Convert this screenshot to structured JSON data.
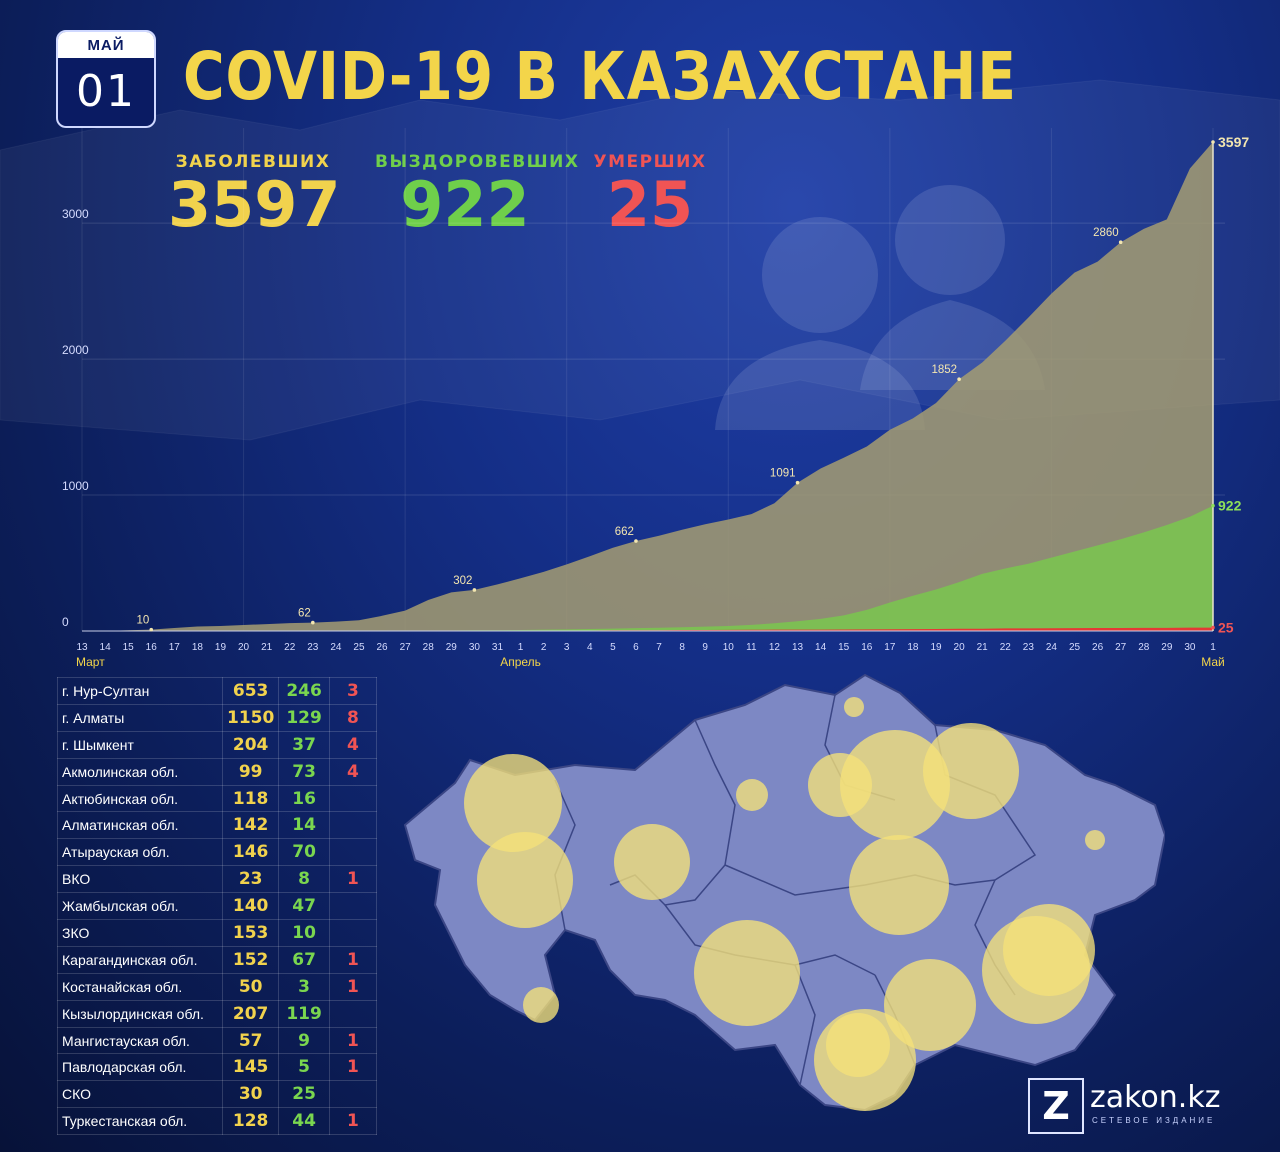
{
  "date_badge": {
    "month": "МАЙ",
    "day": "01"
  },
  "title": "COVID-19 В КАЗАХСТАНЕ",
  "stats": {
    "cases": {
      "label": "ЗАБОЛЕВШИХ",
      "value": "3597"
    },
    "recovered": {
      "label": "ВЫЗДОРОВЕВШИХ",
      "value": "922"
    },
    "deaths": {
      "label": "УМЕРШИХ",
      "value": "25"
    }
  },
  "colors": {
    "cases": "#a49c72",
    "recovered": "#7cc152",
    "deaths": "#e53935",
    "accent_yellow": "#f3d54a"
  },
  "chart_data": {
    "type": "area",
    "x": [
      "13",
      "14",
      "15",
      "16",
      "17",
      "18",
      "19",
      "20",
      "21",
      "22",
      "23",
      "24",
      "25",
      "26",
      "27",
      "28",
      "29",
      "30",
      "31",
      "1",
      "2",
      "3",
      "4",
      "5",
      "6",
      "7",
      "8",
      "9",
      "10",
      "11",
      "12",
      "13",
      "14",
      "15",
      "16",
      "17",
      "18",
      "19",
      "20",
      "21",
      "22",
      "23",
      "24",
      "25",
      "26",
      "27",
      "28",
      "29",
      "30",
      "1"
    ],
    "month_labels": [
      {
        "text": "Март",
        "index": 0
      },
      {
        "text": "Апрель",
        "index": 19
      },
      {
        "text": "Май",
        "index": 49
      }
    ],
    "ylim": [
      0,
      3700
    ],
    "y_ticks": [
      0,
      1000,
      2000,
      3000
    ],
    "grid": true,
    "series": [
      {
        "values": [
          0,
          0,
          5,
          10,
          22,
          33,
          37,
          44,
          51,
          58,
          62,
          69,
          79,
          112,
          150,
          228,
          284,
          302,
          343,
          388,
          435,
          490,
          550,
          612,
          662,
          700,
          745,
          785,
          820,
          860,
          940,
          1091,
          1195,
          1275,
          1357,
          1480,
          1564,
          1677,
          1852,
          1975,
          2135,
          2305,
          2482,
          2636,
          2717,
          2860,
          2958,
          3028,
          3402,
          3597
        ],
        "annotations": [
          {
            "index": 3,
            "text": "10"
          },
          {
            "index": 10,
            "text": "62"
          },
          {
            "index": 17,
            "text": "302"
          },
          {
            "index": 24,
            "text": "662"
          },
          {
            "index": 31,
            "text": "1091"
          },
          {
            "index": 38,
            "text": "1852"
          },
          {
            "index": 45,
            "text": "2860"
          },
          {
            "index": 49,
            "text": "3597"
          }
        ]
      },
      {
        "values": [
          0,
          0,
          0,
          0,
          0,
          0,
          0,
          0,
          0,
          0,
          0,
          1,
          1,
          1,
          2,
          3,
          4,
          5,
          6,
          7,
          10,
          12,
          15,
          18,
          21,
          24,
          27,
          32,
          37,
          45,
          57,
          72,
          89,
          115,
          155,
          210,
          260,
          305,
          360,
          420,
          460,
          495,
          540,
          585,
          630,
          675,
          725,
          780,
          840,
          922
        ],
        "annotations": [
          {
            "index": 49,
            "text": "922"
          }
        ]
      },
      {
        "values": [
          0,
          0,
          0,
          0,
          0,
          0,
          0,
          0,
          0,
          0,
          0,
          0,
          0,
          0,
          1,
          1,
          1,
          1,
          1,
          2,
          3,
          3,
          4,
          5,
          6,
          6,
          7,
          7,
          8,
          9,
          10,
          10,
          10,
          11,
          12,
          13,
          14,
          15,
          17,
          17,
          19,
          19,
          20,
          21,
          22,
          22,
          23,
          23,
          25,
          25
        ],
        "annotations": [
          {
            "index": 49,
            "text": "25"
          }
        ]
      }
    ]
  },
  "regions": [
    {
      "name": "г. Нур-Султан",
      "cases": "653",
      "recovered": "246",
      "deaths": "3"
    },
    {
      "name": "г. Алматы",
      "cases": "1150",
      "recovered": "129",
      "deaths": "8"
    },
    {
      "name": "г. Шымкент",
      "cases": "204",
      "recovered": "37",
      "deaths": "4"
    },
    {
      "name": "Акмолинская обл.",
      "cases": "99",
      "recovered": "73",
      "deaths": "4"
    },
    {
      "name": "Актюбинская обл.",
      "cases": "118",
      "recovered": "16",
      "deaths": ""
    },
    {
      "name": "Алматинская обл.",
      "cases": "142",
      "recovered": "14",
      "deaths": ""
    },
    {
      "name": "Атырауская обл.",
      "cases": "146",
      "recovered": "70",
      "deaths": ""
    },
    {
      "name": "ВКО",
      "cases": "23",
      "recovered": "8",
      "deaths": "1"
    },
    {
      "name": "Жамбылская обл.",
      "cases": "140",
      "recovered": "47",
      "deaths": ""
    },
    {
      "name": "ЗКО",
      "cases": "153",
      "recovered": "10",
      "deaths": ""
    },
    {
      "name": "Карагандинская обл.",
      "cases": "152",
      "recovered": "67",
      "deaths": "1"
    },
    {
      "name": "Костанайская обл.",
      "cases": "50",
      "recovered": "3",
      "deaths": "1"
    },
    {
      "name": "Кызылординская обл.",
      "cases": "207",
      "recovered": "119",
      "deaths": ""
    },
    {
      "name": "Мангистауская обл.",
      "cases": "57",
      "recovered": "9",
      "deaths": "1"
    },
    {
      "name": "Павлодарская обл.",
      "cases": "145",
      "recovered": "5",
      "deaths": "1"
    },
    {
      "name": "СКО",
      "cases": "30",
      "recovered": "25",
      "deaths": ""
    },
    {
      "name": "Туркестанская обл.",
      "cases": "128",
      "recovered": "44",
      "deaths": "1"
    }
  ],
  "logo": {
    "letter": "Z",
    "name": "zakon.kz",
    "subtitle": "СЕТЕВОЕ ИЗДАНИЕ"
  }
}
